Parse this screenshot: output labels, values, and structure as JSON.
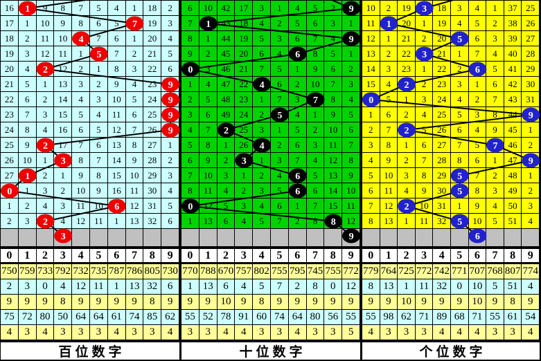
{
  "colors": {
    "outer_border": "#000000",
    "pending_row_bg": "#C0C0C0",
    "stat_row_yellow": "#FFFF99",
    "stat_row_cyan": "#CCFFFF",
    "header_bg": "#FFFFFF",
    "line_color": "#000000"
  },
  "chart_data": {
    "type": "table",
    "description": "Lottery digit trend chart: three panels (hundreds / tens / units digit). Each grid row is one draw; plain numbers are miss counts per digit column; the circled digit is the drawn digit, circles connected by a trend line. Gray row at grid bottom holds the next circled mark. Below: digit headers 0-9 and five statistic rows, then panel title.",
    "digits": [
      "0",
      "1",
      "2",
      "3",
      "4",
      "5",
      "6",
      "7",
      "8",
      "9"
    ],
    "panels": [
      {
        "key": "hundreds",
        "title": "百位数字",
        "bg": "#CCFFFF",
        "circle_color": "#EE0000",
        "prev_hit_col": 7,
        "hit_cols": [
          1,
          7,
          4,
          5,
          2,
          9,
          9,
          9,
          9,
          2,
          3,
          1,
          0,
          6,
          2
        ],
        "next_hit_col": 3,
        "rows": [
          [
            "16",
            "",
            "9",
            "8",
            "7",
            "5",
            "4",
            "1",
            "18",
            "2"
          ],
          [
            "17",
            "1",
            "10",
            "9",
            "8",
            "6",
            "5",
            "",
            "19",
            "3"
          ],
          [
            "18",
            "2",
            "11",
            "10",
            "",
            "7",
            "6",
            "1",
            "20",
            "4"
          ],
          [
            "19",
            "3",
            "12",
            "11",
            "1",
            "",
            "7",
            "2",
            "21",
            "5"
          ],
          [
            "20",
            "4",
            "",
            "12",
            "2",
            "1",
            "8",
            "3",
            "22",
            "6"
          ],
          [
            "21",
            "5",
            "1",
            "13",
            "3",
            "2",
            "9",
            "4",
            "23",
            ""
          ],
          [
            "22",
            "6",
            "2",
            "14",
            "4",
            "3",
            "10",
            "5",
            "24",
            ""
          ],
          [
            "23",
            "7",
            "3",
            "15",
            "5",
            "4",
            "11",
            "6",
            "25",
            ""
          ],
          [
            "24",
            "8",
            "4",
            "16",
            "6",
            "5",
            "12",
            "7",
            "26",
            ""
          ],
          [
            "25",
            "9",
            "",
            "17",
            "7",
            "6",
            "13",
            "8",
            "27",
            "1"
          ],
          [
            "26",
            "10",
            "1",
            "",
            "8",
            "7",
            "14",
            "9",
            "28",
            "2"
          ],
          [
            "27",
            "",
            "2",
            "1",
            "9",
            "8",
            "15",
            "10",
            "29",
            "3"
          ],
          [
            "",
            "1",
            "3",
            "2",
            "10",
            "9",
            "16",
            "11",
            "30",
            "4"
          ],
          [
            "1",
            "2",
            "4",
            "3",
            "11",
            "10",
            "",
            "12",
            "31",
            "5"
          ],
          [
            "2",
            "3",
            "",
            "4",
            "12",
            "11",
            "1",
            "13",
            "32",
            "6"
          ]
        ],
        "stats": [
          [
            "750",
            "759",
            "733",
            "792",
            "732",
            "735",
            "787",
            "786",
            "805",
            "730"
          ],
          [
            "2",
            "3",
            "0",
            "4",
            "12",
            "11",
            "1",
            "13",
            "32",
            "6"
          ],
          [
            "9",
            "9",
            "9",
            "8",
            "9",
            "9",
            "9",
            "9",
            "8",
            "9"
          ],
          [
            "75",
            "72",
            "80",
            "50",
            "64",
            "64",
            "61",
            "74",
            "85",
            "62"
          ],
          [
            "4",
            "3",
            "4",
            "3",
            "3",
            "3",
            "4",
            "3",
            "3",
            "4"
          ]
        ]
      },
      {
        "key": "tens",
        "title": "十位数字",
        "bg": "#00D400",
        "circle_color": "#000000",
        "prev_hit_col": 7,
        "hit_cols": [
          9,
          1,
          9,
          6,
          0,
          4,
          7,
          5,
          2,
          4,
          3,
          6,
          6,
          0,
          8
        ],
        "next_hit_col": 9,
        "rows": [
          [
            "6",
            "10",
            "42",
            "17",
            "3",
            "1",
            "4",
            "5",
            "2",
            ""
          ],
          [
            "7",
            "",
            "43",
            "18",
            "4",
            "2",
            "5",
            "6",
            "3",
            "1"
          ],
          [
            "8",
            "1",
            "44",
            "19",
            "5",
            "3",
            "6",
            "7",
            "4",
            ""
          ],
          [
            "9",
            "2",
            "45",
            "20",
            "6",
            "4",
            "",
            "8",
            "5",
            "1"
          ],
          [
            "",
            "3",
            "46",
            "21",
            "7",
            "5",
            "1",
            "9",
            "6",
            "2"
          ],
          [
            "1",
            "4",
            "47",
            "22",
            "",
            "6",
            "2",
            "10",
            "7",
            "3"
          ],
          [
            "2",
            "5",
            "48",
            "23",
            "1",
            "7",
            "3",
            "",
            "8",
            "4"
          ],
          [
            "3",
            "6",
            "49",
            "24",
            "2",
            "",
            "4",
            "1",
            "9",
            "5"
          ],
          [
            "4",
            "7",
            "",
            "25",
            "3",
            "1",
            "5",
            "2",
            "10",
            "6"
          ],
          [
            "5",
            "8",
            "1",
            "26",
            "",
            "2",
            "6",
            "3",
            "11",
            "7"
          ],
          [
            "6",
            "9",
            "2",
            "",
            "1",
            "3",
            "7",
            "4",
            "12",
            "8"
          ],
          [
            "7",
            "10",
            "3",
            "1",
            "2",
            "4",
            "",
            "5",
            "13",
            "9"
          ],
          [
            "8",
            "11",
            "4",
            "2",
            "3",
            "5",
            "",
            "6",
            "14",
            "10"
          ],
          [
            "",
            "12",
            "5",
            "3",
            "4",
            "6",
            "1",
            "7",
            "15",
            "11"
          ],
          [
            "1",
            "13",
            "6",
            "4",
            "5",
            "7",
            "2",
            "8",
            "",
            "12"
          ]
        ],
        "stats": [
          [
            "770",
            "788",
            "670",
            "757",
            "802",
            "755",
            "795",
            "745",
            "755",
            "772"
          ],
          [
            "1",
            "13",
            "6",
            "4",
            "5",
            "7",
            "2",
            "8",
            "0",
            "12"
          ],
          [
            "9",
            "9",
            "10",
            "9",
            "8",
            "9",
            "9",
            "9",
            "9",
            "9"
          ],
          [
            "55",
            "52",
            "78",
            "91",
            "60",
            "74",
            "64",
            "80",
            "56",
            "55"
          ],
          [
            "3",
            "3",
            "4",
            "4",
            "3",
            "3",
            "4",
            "3",
            "3",
            "5"
          ]
        ]
      },
      {
        "key": "units",
        "title": "个位数字",
        "bg": "#FFFF00",
        "circle_color": "#2222CC",
        "prev_hit_col": 6,
        "hit_cols": [
          3,
          1,
          5,
          3,
          6,
          2,
          0,
          9,
          2,
          7,
          9,
          5,
          5,
          2,
          5
        ],
        "next_hit_col": 6,
        "rows": [
          [
            "10",
            "2",
            "19",
            "",
            "18",
            "3",
            "4",
            "1",
            "37",
            "25"
          ],
          [
            "11",
            "",
            "20",
            "1",
            "19",
            "4",
            "5",
            "2",
            "38",
            "26"
          ],
          [
            "12",
            "1",
            "21",
            "2",
            "20",
            "",
            "6",
            "3",
            "39",
            "27"
          ],
          [
            "13",
            "2",
            "22",
            "",
            "21",
            "1",
            "7",
            "4",
            "40",
            "28"
          ],
          [
            "14",
            "3",
            "23",
            "1",
            "22",
            "2",
            "",
            "5",
            "41",
            "29"
          ],
          [
            "15",
            "4",
            "",
            "2",
            "23",
            "3",
            "1",
            "6",
            "42",
            "30"
          ],
          [
            "",
            "5",
            "1",
            "3",
            "24",
            "4",
            "2",
            "7",
            "43",
            "31"
          ],
          [
            "1",
            "6",
            "2",
            "4",
            "25",
            "5",
            "3",
            "8",
            "44",
            ""
          ],
          [
            "2",
            "7",
            "",
            "5",
            "26",
            "6",
            "4",
            "9",
            "45",
            "1"
          ],
          [
            "3",
            "8",
            "1",
            "6",
            "27",
            "7",
            "5",
            "",
            "46",
            "2"
          ],
          [
            "4",
            "9",
            "2",
            "7",
            "28",
            "8",
            "6",
            "1",
            "47",
            ""
          ],
          [
            "5",
            "10",
            "3",
            "8",
            "29",
            "",
            "7",
            "2",
            "48",
            "1"
          ],
          [
            "6",
            "11",
            "4",
            "9",
            "30",
            "",
            "8",
            "3",
            "49",
            "2"
          ],
          [
            "7",
            "12",
            "",
            "10",
            "31",
            "1",
            "9",
            "4",
            "50",
            "3"
          ],
          [
            "8",
            "13",
            "1",
            "11",
            "32",
            "",
            "10",
            "5",
            "51",
            "4"
          ]
        ],
        "stats": [
          [
            "779",
            "764",
            "725",
            "772",
            "742",
            "771",
            "707",
            "768",
            "807",
            "774"
          ],
          [
            "8",
            "13",
            "1",
            "11",
            "32",
            "0",
            "10",
            "5",
            "51",
            "4"
          ],
          [
            "9",
            "9",
            "10",
            "9",
            "9",
            "9",
            "10",
            "9",
            "8",
            "9"
          ],
          [
            "55",
            "98",
            "62",
            "71",
            "89",
            "68",
            "71",
            "55",
            "61",
            "54"
          ],
          [
            "4",
            "3",
            "3",
            "3",
            "4",
            "4",
            "4",
            "3",
            "3",
            "4"
          ]
        ]
      }
    ]
  }
}
